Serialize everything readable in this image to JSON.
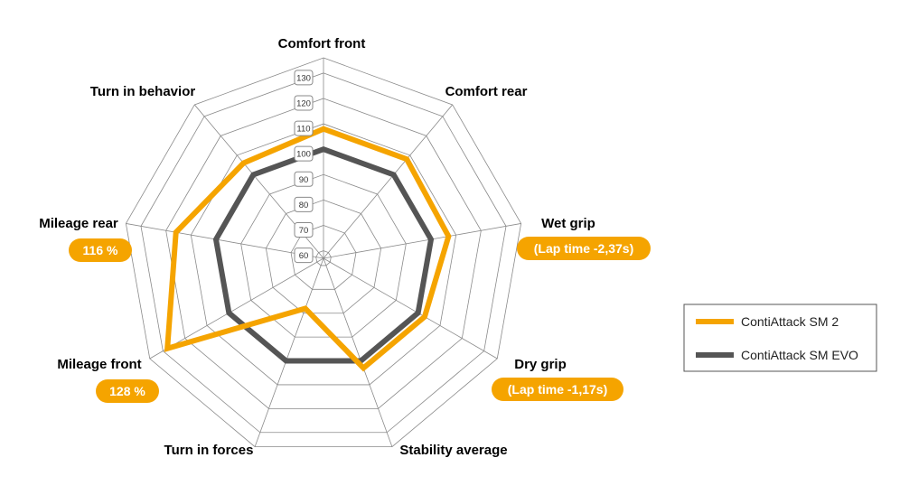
{
  "chart_data": {
    "type": "radar",
    "axes": [
      "Comfort front",
      "Comfort rear",
      "Wet grip",
      "Dry grip",
      "Stability average",
      "Turn in  forces",
      "Mileage front",
      "Mileage rear",
      "Turn in  behavior"
    ],
    "ticks": [
      60,
      70,
      80,
      90,
      100,
      110,
      120,
      130
    ],
    "range": [
      57,
      136
    ],
    "series": [
      {
        "name": "ContiAttack SM 2",
        "color": "#F5A400",
        "values": [
          108,
          108,
          107,
          103,
          103,
          78,
          128,
          116,
          106
        ]
      },
      {
        "name": "ContiAttack SM EVO",
        "color": "#555555",
        "values": [
          100,
          100,
          100,
          100,
          100,
          100,
          100,
          100,
          100
        ]
      }
    ],
    "badges": [
      {
        "axis": "Wet grip",
        "text": "(Lap time -2,37s)"
      },
      {
        "axis": "Dry grip",
        "text": "(Lap time -1,17s)"
      },
      {
        "axis": "Mileage front",
        "text": "128 %"
      },
      {
        "axis": "Mileage rear",
        "text": "116 %"
      }
    ],
    "grid_color": "#8a8a8a",
    "legend_position": "right"
  }
}
